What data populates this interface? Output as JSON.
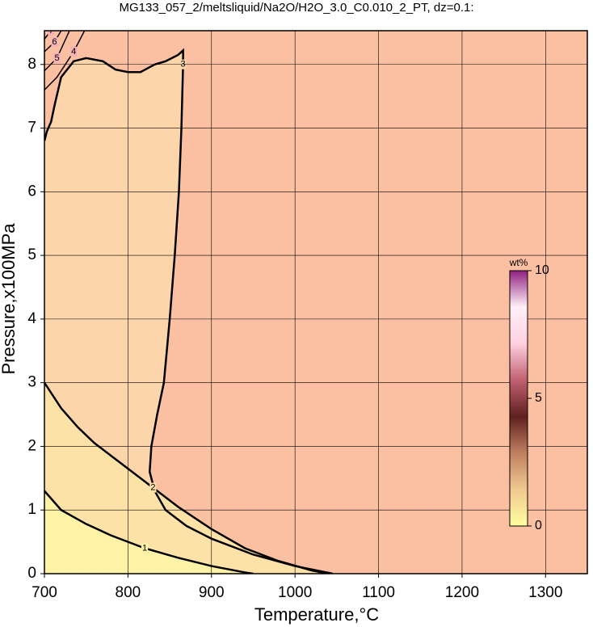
{
  "chart_data": {
    "type": "contour",
    "title": "MG133_057_2/meltsliquid/Na2O/H2O_3.0_C0.010_2_PT, dz=0.1:",
    "xlabel": "Temperature,°C",
    "ylabel": "Pressure,x100MPa",
    "xlim": [
      700,
      1350
    ],
    "ylim": [
      0,
      8.53
    ],
    "xticks": [
      700,
      800,
      900,
      1000,
      1100,
      1200,
      1300
    ],
    "yticks": [
      0,
      1,
      2,
      3,
      4,
      5,
      6,
      7,
      8
    ],
    "grid": true,
    "background": "#fbbfa2",
    "contours": [
      {
        "level": 3,
        "fill": "#fdd5ab",
        "x": [
          700,
          703,
          708,
          712,
          720,
          735,
          750,
          770,
          785,
          800,
          815,
          825,
          832,
          845,
          860,
          866,
          866,
          864,
          861,
          856,
          850,
          843,
          835,
          828,
          826,
          832,
          845,
          870,
          900,
          950,
          1000,
          1045
        ],
        "y": [
          6.8,
          6.95,
          7.1,
          7.35,
          7.8,
          8.05,
          8.1,
          8.05,
          7.92,
          7.88,
          7.88,
          7.95,
          8.0,
          8.05,
          8.15,
          8.22,
          8.0,
          7.0,
          6.0,
          5.0,
          4.0,
          3.0,
          2.5,
          2.0,
          1.6,
          1.3,
          1.0,
          0.75,
          0.55,
          0.3,
          0.12,
          0
        ]
      },
      {
        "level": 2,
        "fill": "#fde2a8",
        "x": [
          700,
          720,
          740,
          760,
          780,
          800,
          830,
          860,
          900,
          940,
          980,
          1020,
          1040
        ],
        "y": [
          3.0,
          2.6,
          2.3,
          2.05,
          1.85,
          1.65,
          1.35,
          1.05,
          0.7,
          0.4,
          0.2,
          0.05,
          0
        ]
      },
      {
        "level": 1,
        "fill": "#fef2a6",
        "x": [
          700,
          720,
          750,
          780,
          820,
          860,
          900,
          940,
          950
        ],
        "y": [
          1.3,
          1.0,
          0.78,
          0.6,
          0.4,
          0.25,
          0.12,
          0.02,
          0
        ]
      },
      {
        "level": 4,
        "x": [
          700,
          715,
          735,
          748
        ],
        "y": [
          7.6,
          7.8,
          8.2,
          8.53
        ]
      },
      {
        "level": 5,
        "x": [
          700,
          715,
          730
        ],
        "y": [
          7.9,
          8.1,
          8.53
        ]
      },
      {
        "level": 6,
        "x": [
          700,
          712,
          720
        ],
        "y": [
          8.2,
          8.35,
          8.53
        ]
      },
      {
        "level": 7,
        "x": [
          700,
          708
        ],
        "y": [
          8.4,
          8.53
        ]
      }
    ],
    "colorbar": {
      "label": "wt%",
      "lim": [
        0,
        10
      ],
      "ticks": [
        0,
        5,
        10
      ],
      "colors": [
        "#ffffa0",
        "#f0c890",
        "#c08060",
        "#602020",
        "#c06070",
        "#ffd0e0",
        "#fff0f8",
        "#902080"
      ]
    }
  }
}
